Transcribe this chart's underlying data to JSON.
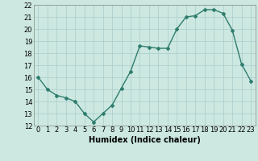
{
  "x": [
    0,
    1,
    2,
    3,
    4,
    5,
    6,
    7,
    8,
    9,
    10,
    11,
    12,
    13,
    14,
    15,
    16,
    17,
    18,
    19,
    20,
    21,
    22,
    23
  ],
  "y": [
    16.0,
    15.0,
    14.5,
    14.3,
    14.0,
    13.0,
    12.3,
    13.0,
    13.7,
    15.1,
    16.5,
    18.6,
    18.5,
    18.4,
    18.4,
    20.0,
    21.0,
    21.1,
    21.6,
    21.6,
    21.3,
    19.9,
    17.1,
    15.7
  ],
  "xlim": [
    -0.5,
    23.5
  ],
  "ylim": [
    12,
    22
  ],
  "yticks": [
    12,
    13,
    14,
    15,
    16,
    17,
    18,
    19,
    20,
    21,
    22
  ],
  "xticks": [
    0,
    1,
    2,
    3,
    4,
    5,
    6,
    7,
    8,
    9,
    10,
    11,
    12,
    13,
    14,
    15,
    16,
    17,
    18,
    19,
    20,
    21,
    22,
    23
  ],
  "xlabel": "Humidex (Indice chaleur)",
  "line_color": "#2e7d6e",
  "marker": "D",
  "marker_size": 2,
  "background_color": "#cce8e0",
  "grid_color": "#aacccc",
  "xlabel_fontsize": 7,
  "tick_fontsize": 6,
  "line_width": 1.0
}
